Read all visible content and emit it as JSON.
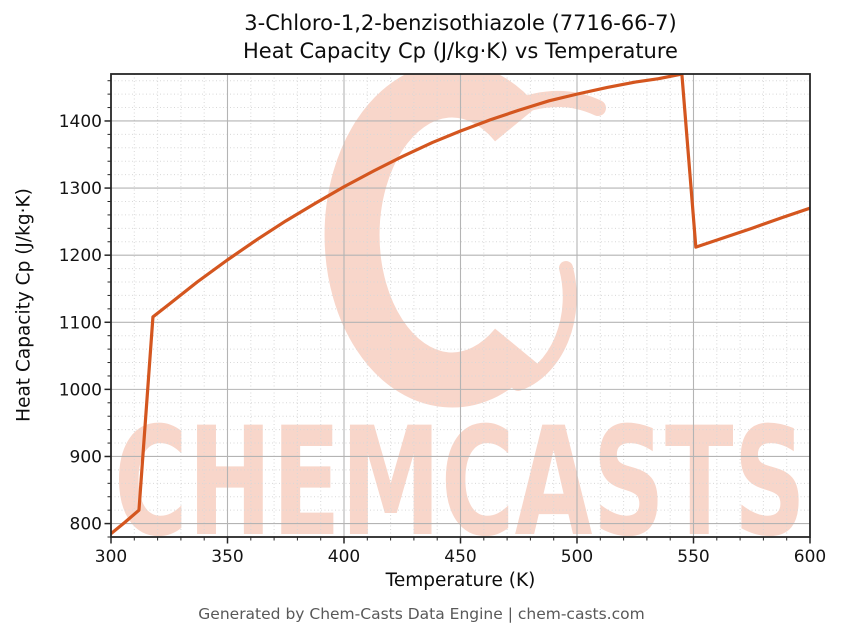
{
  "page": {
    "title_line1": "3-Chloro-1,2-benzisothiazole (7716-66-7)",
    "title_line2": "Heat Capacity Cp (J/kg·K) vs Temperature",
    "footer": "Generated by Chem-Casts Data Engine | chem-casts.com"
  },
  "watermark": {
    "text": "CHEMCASTS",
    "logo": "chemcasts-c-swirl-logo",
    "color": "#f8d6ca"
  },
  "chart_data": {
    "type": "line",
    "title": "3-Chloro-1,2-benzisothiazole (7716-66-7) Heat Capacity Cp (J/kg·K) vs Temperature",
    "xlabel": "Temperature (K)",
    "ylabel": "Heat Capacity Cp (J/kg·K)",
    "xlim": [
      300,
      600
    ],
    "ylim": [
      780,
      1470
    ],
    "x_major_ticks": [
      300,
      350,
      400,
      450,
      500,
      550,
      600
    ],
    "y_major_ticks": [
      800,
      900,
      1000,
      1100,
      1200,
      1300,
      1400
    ],
    "x_minor_step": 10,
    "y_minor_step": 20,
    "grid": {
      "major": true,
      "minor": true
    },
    "legend": false,
    "series": [
      {
        "name": "Heat Capacity Cp",
        "color": "#d4561f",
        "points": [
          [
            300,
            785
          ],
          [
            306,
            802
          ],
          [
            312,
            820
          ],
          [
            318,
            1108
          ],
          [
            325,
            1127
          ],
          [
            337,
            1160
          ],
          [
            350,
            1193
          ],
          [
            363,
            1224
          ],
          [
            375,
            1251
          ],
          [
            388,
            1278
          ],
          [
            400,
            1302
          ],
          [
            413,
            1326
          ],
          [
            425,
            1347
          ],
          [
            438,
            1368
          ],
          [
            450,
            1385
          ],
          [
            463,
            1402
          ],
          [
            475,
            1416
          ],
          [
            488,
            1430
          ],
          [
            500,
            1440
          ],
          [
            513,
            1450
          ],
          [
            525,
            1458
          ],
          [
            535,
            1463
          ],
          [
            545,
            1470
          ],
          [
            551,
            1212
          ],
          [
            563,
            1226
          ],
          [
            575,
            1240
          ],
          [
            588,
            1256
          ],
          [
            600,
            1270
          ]
        ]
      }
    ]
  },
  "style": {
    "line_color": "#d4561f",
    "grid_major_color": "#b4b4b4",
    "grid_minor_color": "#d8d8d8",
    "spine_color": "#262626",
    "tick_color": "#262626",
    "text_color": "#141414",
    "footer_color": "#595959",
    "watermark_color": "#f8d6ca",
    "background": "#ffffff"
  }
}
